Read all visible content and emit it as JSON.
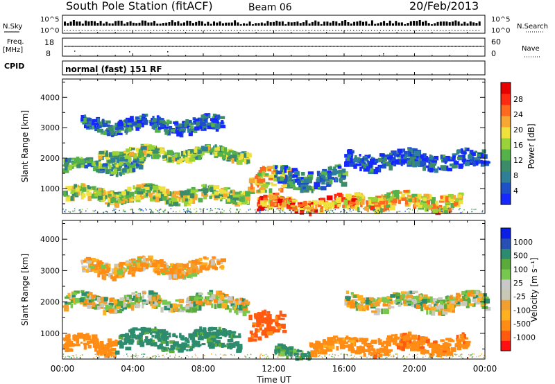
{
  "header": {
    "station": "South Pole Station (fitACF)",
    "beam": "Beam 06",
    "date": "20/Feb/2013"
  },
  "aux_panels": {
    "nsky_label": "N.Sky",
    "nsearch_label": "N.Search",
    "nsky_top": "10^5",
    "nsky_bottom": "10^0",
    "freq_label_1": "Freq.",
    "freq_label_2": "[MHz]",
    "freq_top": "18",
    "freq_bottom": "8",
    "nave_label": "Nave",
    "nave_top": "60",
    "nave_bottom": "0",
    "cpid_label": "CPID",
    "cpid_text": "normal (fast) 151 RF"
  },
  "colors": {
    "power_bar": [
      "#1428ff",
      "#1e50c8",
      "#2f7f96",
      "#3c8c6a",
      "#55b24b",
      "#9ad23a",
      "#f0e13c",
      "#f7a832",
      "#ff6a1e",
      "#ff2a12",
      "#e60000"
    ],
    "velocity_bar": [
      "#ff1010",
      "#ff5a10",
      "#ff8c14",
      "#ffb020",
      "#f0a030",
      "#c8c8b4",
      "#c8c8c8",
      "#78c850",
      "#5aaa3c",
      "#2d8c6e",
      "#2850b4",
      "#0a1ee6"
    ]
  },
  "chart_data": [
    {
      "type": "heatmap",
      "title": "",
      "xlabel": "Time UT",
      "ylabel": "Slant Range [km]",
      "xticks": [
        "00:00",
        "04:00",
        "08:00",
        "12:00",
        "16:00",
        "20:00",
        "00:00"
      ],
      "yticks": [
        1000,
        2000,
        3000,
        4000
      ],
      "ylim": [
        180,
        4600
      ],
      "xlim": [
        0,
        24
      ],
      "colorbar": {
        "label": "Power [dB]",
        "ticks": [
          "4",
          "8",
          "12",
          "16",
          "20",
          "24",
          "28"
        ],
        "range": [
          0,
          30
        ]
      },
      "bands": [
        {
          "x0": 0.0,
          "x1": 4.5,
          "y_center": 1800,
          "y_half": 170,
          "level": 0.35
        },
        {
          "x0": 2.0,
          "x1": 10.5,
          "y_center": 2200,
          "y_half": 160,
          "level": 0.45
        },
        {
          "x0": 0.0,
          "x1": 10.5,
          "y_center": 850,
          "y_half": 220,
          "level": 0.5
        },
        {
          "x0": 1.0,
          "x1": 9.0,
          "y_center": 3150,
          "y_half": 220,
          "level": 0.2
        },
        {
          "x0": 10.5,
          "x1": 13.0,
          "y_center": 1300,
          "y_half": 400,
          "level": 0.6
        },
        {
          "x0": 11.0,
          "x1": 16.5,
          "y_center": 550,
          "y_half": 200,
          "level": 0.75
        },
        {
          "x0": 16.5,
          "x1": 22.5,
          "y_center": 650,
          "y_half": 250,
          "level": 0.6
        },
        {
          "x0": 16.0,
          "x1": 24.0,
          "y_center": 2000,
          "y_half": 250,
          "level": 0.15
        },
        {
          "x0": 12.0,
          "x1": 16.0,
          "y_center": 1400,
          "y_half": 300,
          "level": 0.25
        }
      ]
    },
    {
      "type": "heatmap",
      "title": "",
      "xlabel": "Time UT",
      "ylabel": "Slant Range [km]",
      "xticks": [
        "00:00",
        "04:00",
        "08:00",
        "12:00",
        "16:00",
        "20:00",
        "00:00"
      ],
      "yticks": [
        1000,
        2000,
        3000,
        4000
      ],
      "ylim": [
        180,
        4600
      ],
      "xlim": [
        0,
        24
      ],
      "colorbar": {
        "label": "Velocity [m s⁻¹]",
        "ticks": [
          "1000",
          "500",
          "100",
          "25",
          "-25",
          "-100",
          "-500",
          "-1000"
        ],
        "range": [
          -1200,
          1200
        ]
      },
      "bands": [
        {
          "x0": 0.0,
          "x1": 10.5,
          "y_center": 2050,
          "y_half": 220,
          "velocity": 10
        },
        {
          "x0": 0.0,
          "x1": 3.0,
          "y_center": 700,
          "y_half": 250,
          "velocity": -300
        },
        {
          "x0": 3.0,
          "x1": 10.0,
          "y_center": 850,
          "y_half": 300,
          "velocity": 200
        },
        {
          "x0": 1.0,
          "x1": 9.0,
          "y_center": 3150,
          "y_half": 220,
          "velocity": -80
        },
        {
          "x0": 10.5,
          "x1": 12.5,
          "y_center": 1300,
          "y_half": 400,
          "velocity": -600
        },
        {
          "x0": 12.0,
          "x1": 14.0,
          "y_center": 450,
          "y_half": 150,
          "velocity": 150
        },
        {
          "x0": 14.0,
          "x1": 16.5,
          "y_center": 650,
          "y_half": 200,
          "velocity": -200
        },
        {
          "x0": 16.5,
          "x1": 23.0,
          "y_center": 700,
          "y_half": 250,
          "velocity": -400
        },
        {
          "x0": 16.0,
          "x1": 24.0,
          "y_center": 2050,
          "y_half": 230,
          "velocity": 0
        }
      ]
    }
  ]
}
